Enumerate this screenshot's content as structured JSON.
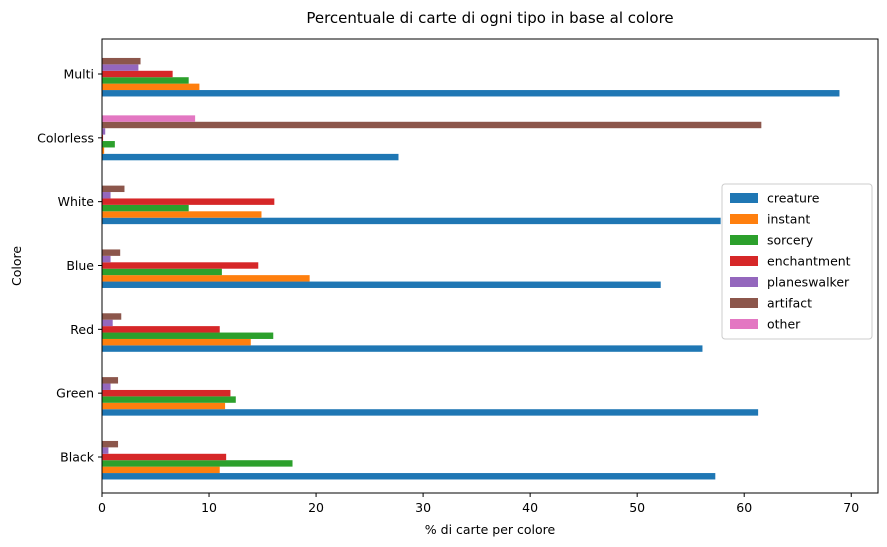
{
  "chart_data": {
    "type": "bar",
    "orientation": "horizontal",
    "title": "Percentuale di carte di ogni tipo in base al colore",
    "xlabel": "% di carte per colore",
    "ylabel": "Colore",
    "xlim": [
      0,
      72.5
    ],
    "xticks": [
      0,
      10,
      20,
      30,
      40,
      50,
      60,
      70
    ],
    "categories": [
      "Black",
      "Green",
      "Red",
      "Blue",
      "White",
      "Colorless",
      "Multi"
    ],
    "series": [
      {
        "name": "creature",
        "color": "#1f77b4",
        "values": [
          57.3,
          61.3,
          56.1,
          52.2,
          57.8,
          27.7,
          68.9
        ]
      },
      {
        "name": "instant",
        "color": "#ff7f0e",
        "values": [
          11.0,
          11.5,
          13.9,
          19.4,
          14.9,
          0.2,
          9.1
        ]
      },
      {
        "name": "sorcery",
        "color": "#2ca02c",
        "values": [
          17.8,
          12.5,
          16.0,
          11.2,
          8.1,
          1.2,
          8.1
        ]
      },
      {
        "name": "enchantment",
        "color": "#d62728",
        "values": [
          11.6,
          12.0,
          11.0,
          14.6,
          16.1,
          0.1,
          6.6
        ]
      },
      {
        "name": "planeswalker",
        "color": "#9467bd",
        "values": [
          0.6,
          0.8,
          1.0,
          0.8,
          0.8,
          0.3,
          3.4
        ]
      },
      {
        "name": "artifact",
        "color": "#8c564b",
        "values": [
          1.5,
          1.5,
          1.8,
          1.7,
          2.1,
          61.6,
          3.6
        ]
      },
      {
        "name": "other",
        "color": "#e377c2",
        "values": [
          0,
          0,
          0,
          0,
          0,
          8.7,
          0
        ]
      }
    ],
    "legend_position": "center-right",
    "grid": false
  }
}
